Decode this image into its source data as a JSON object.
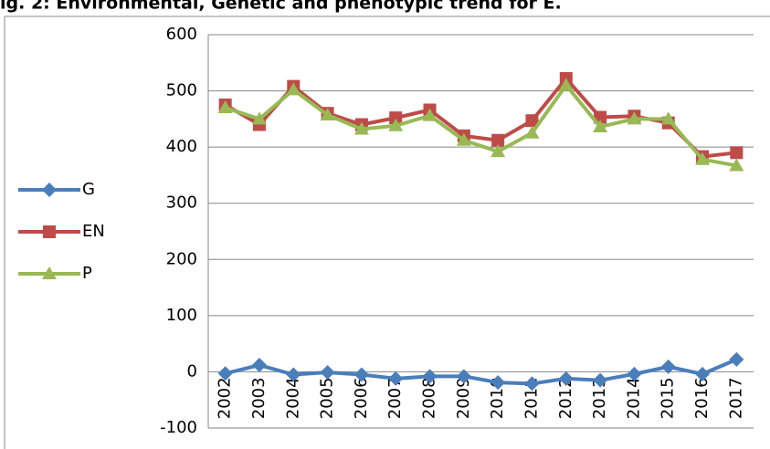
{
  "chart_data": {
    "type": "line",
    "title": "ig. 2: Environmental, Genetic and phenotypic trend for E.",
    "categories": [
      "2002",
      "2003",
      "2004",
      "2005",
      "2006",
      "2007",
      "2008",
      "2009",
      "2010",
      "2011",
      "2012",
      "2013",
      "2014",
      "2015",
      "2016",
      "2017"
    ],
    "series": [
      {
        "name": "G",
        "color": "#4a7ebb",
        "marker": "diamond",
        "values": [
          -3,
          12,
          -5,
          -1,
          -5,
          -12,
          -8,
          -8,
          -19,
          -21,
          -12,
          -15,
          -4,
          9,
          -4,
          22
        ]
      },
      {
        "name": "EN",
        "color": "#be4b48",
        "marker": "square",
        "values": [
          475,
          440,
          508,
          460,
          440,
          452,
          466,
          420,
          412,
          447,
          522,
          453,
          455,
          443,
          383,
          390
        ]
      },
      {
        "name": "P",
        "color": "#98b954",
        "marker": "triangle",
        "values": [
          470,
          450,
          502,
          457,
          432,
          438,
          456,
          412,
          392,
          425,
          510,
          436,
          450,
          450,
          378,
          367
        ]
      }
    ],
    "ylim": [
      -100,
      600
    ],
    "yticks": [
      -100,
      0,
      100,
      200,
      300,
      400,
      500,
      600
    ],
    "grid": true,
    "legend": "left"
  }
}
